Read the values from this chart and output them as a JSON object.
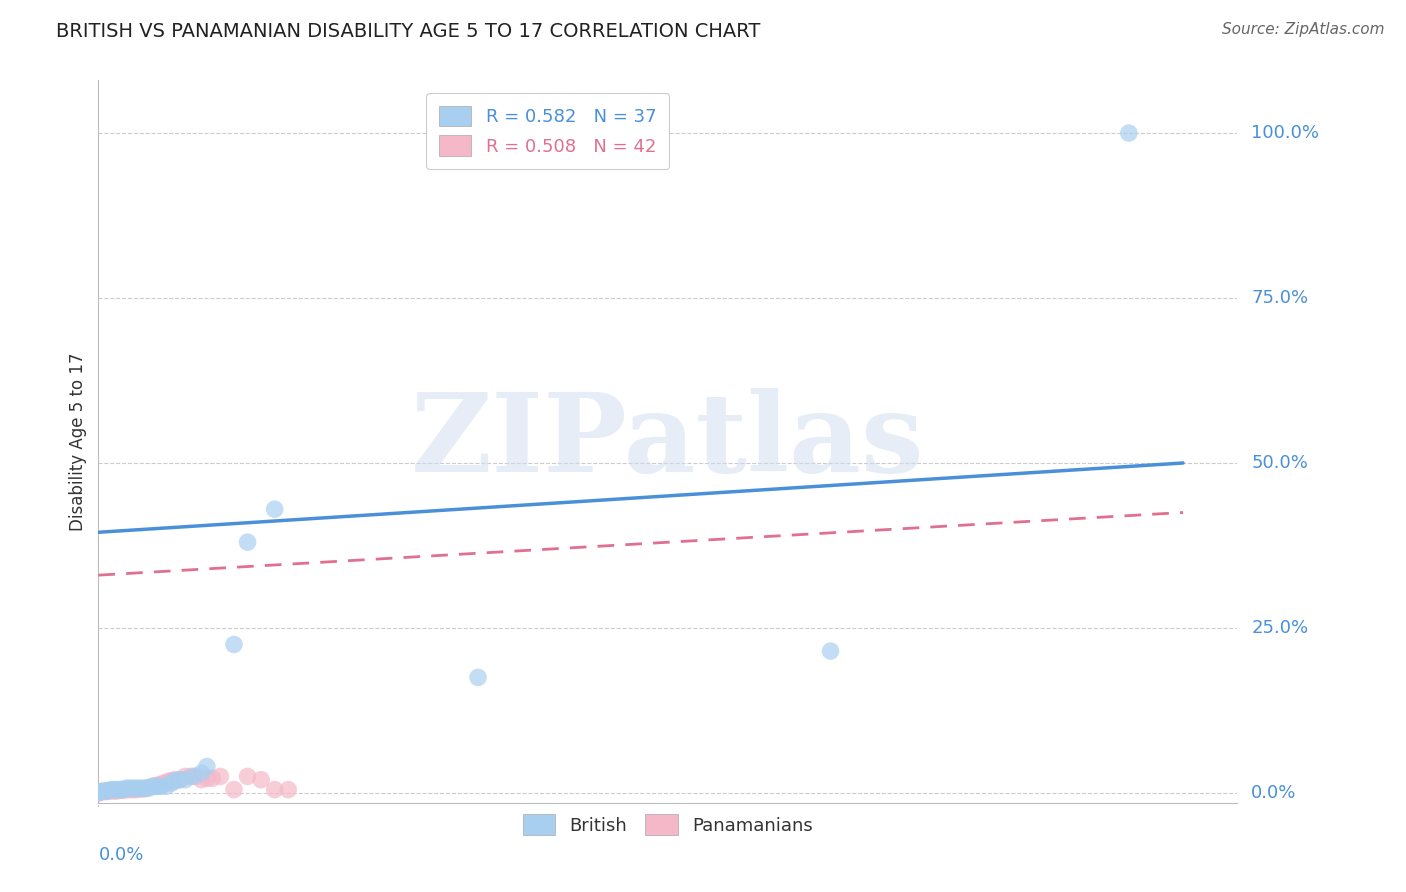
{
  "title": "BRITISH VS PANAMANIAN DISABILITY AGE 5 TO 17 CORRELATION CHART",
  "source": "Source: ZipAtlas.com",
  "ylabel": "Disability Age 5 to 17",
  "british_R": "0.582",
  "british_N": "37",
  "panamanian_R": "0.508",
  "panamanian_N": "42",
  "british_color": "#A8CFF0",
  "panamanian_color": "#F5B8C8",
  "british_line_color": "#4A90D9",
  "panamanian_line_color": "#E07090",
  "tick_label_color": "#4A90D9",
  "background_color": "#FFFFFF",
  "grid_color": "#CCCCCC",
  "xlim": [
    0.0,
    0.42
  ],
  "ylim": [
    -0.015,
    1.08
  ],
  "yticks": [
    0.0,
    0.25,
    0.5,
    0.75,
    1.0
  ],
  "ytick_labels": [
    "0.0%",
    "25.0%",
    "50.0%",
    "75.0%",
    "100.0%"
  ],
  "british_line_x": [
    0.0,
    0.4
  ],
  "british_line_y": [
    0.395,
    0.5
  ],
  "panamanian_line_x": [
    0.0,
    0.4
  ],
  "panamanian_line_y": [
    0.33,
    0.425
  ],
  "british_x": [
    0.0,
    0.001,
    0.002,
    0.003,
    0.004,
    0.005,
    0.006,
    0.007,
    0.008,
    0.009,
    0.01,
    0.011,
    0.012,
    0.013,
    0.014,
    0.015,
    0.016,
    0.017,
    0.018,
    0.02,
    0.021,
    0.022,
    0.023,
    0.025,
    0.027,
    0.028,
    0.03,
    0.032,
    0.035,
    0.038,
    0.04,
    0.05,
    0.055,
    0.065,
    0.14,
    0.27,
    0.38
  ],
  "british_y": [
    0.0,
    0.002,
    0.003,
    0.003,
    0.004,
    0.005,
    0.005,
    0.005,
    0.005,
    0.005,
    0.007,
    0.007,
    0.007,
    0.007,
    0.007,
    0.007,
    0.007,
    0.007,
    0.007,
    0.01,
    0.01,
    0.01,
    0.01,
    0.01,
    0.015,
    0.018,
    0.02,
    0.02,
    0.025,
    0.03,
    0.04,
    0.225,
    0.38,
    0.43,
    0.175,
    0.215,
    1.0
  ],
  "panamanian_x": [
    0.0,
    0.001,
    0.002,
    0.003,
    0.004,
    0.005,
    0.006,
    0.007,
    0.008,
    0.009,
    0.01,
    0.011,
    0.012,
    0.013,
    0.014,
    0.015,
    0.016,
    0.017,
    0.018,
    0.019,
    0.02,
    0.021,
    0.022,
    0.023,
    0.024,
    0.025,
    0.026,
    0.027,
    0.028,
    0.03,
    0.032,
    0.034,
    0.036,
    0.038,
    0.04,
    0.042,
    0.045,
    0.05,
    0.055,
    0.06,
    0.065,
    0.07
  ],
  "panamanian_y": [
    0.0,
    0.002,
    0.002,
    0.002,
    0.003,
    0.003,
    0.003,
    0.003,
    0.004,
    0.004,
    0.005,
    0.005,
    0.005,
    0.005,
    0.005,
    0.006,
    0.006,
    0.006,
    0.008,
    0.008,
    0.01,
    0.01,
    0.012,
    0.012,
    0.015,
    0.015,
    0.018,
    0.018,
    0.02,
    0.02,
    0.025,
    0.025,
    0.025,
    0.02,
    0.022,
    0.022,
    0.025,
    0.005,
    0.025,
    0.02,
    0.005,
    0.005
  ],
  "watermark_text": "ZIPatlas",
  "watermark_color": "#D0DCF0",
  "watermark_alpha": 0.5,
  "title_fontsize": 14,
  "source_fontsize": 11,
  "tick_fontsize": 13,
  "ylabel_fontsize": 12,
  "legend_fontsize": 13,
  "marker_size": 160,
  "marker_alpha": 0.7
}
